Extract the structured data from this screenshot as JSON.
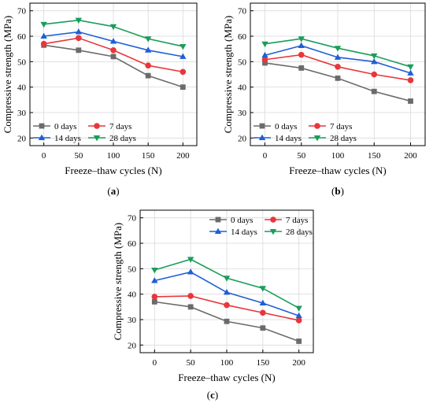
{
  "chart_data": [
    {
      "type": "line",
      "panel_label": "(a)",
      "xlabel": "Freeze–thaw cycles (N)",
      "ylabel": "Compressive strength (MPa)",
      "x": [
        0,
        50,
        100,
        150,
        200
      ],
      "x_ticks": [
        "0",
        "50",
        "100",
        "150",
        "200"
      ],
      "y_ticks": [
        "20",
        "30",
        "40",
        "50",
        "60",
        "70"
      ],
      "xlim": [
        -20,
        220
      ],
      "ylim": [
        17,
        73
      ],
      "grid": true,
      "legend_position": "bottom-left",
      "series": [
        {
          "name": "0 days",
          "values": [
            56.5,
            54.5,
            52,
            44.5,
            40
          ]
        },
        {
          "name": "7 days",
          "values": [
            57,
            59.3,
            54.5,
            48.5,
            46
          ]
        },
        {
          "name": "14 days",
          "values": [
            60,
            61.7,
            58,
            54.5,
            52
          ]
        },
        {
          "name": "28 days",
          "values": [
            64.7,
            66.3,
            63.8,
            59,
            56
          ]
        }
      ]
    },
    {
      "type": "line",
      "panel_label": "(b)",
      "xlabel": "Freeze–thaw cycles (N)",
      "ylabel": "Compressive strength (MPa)",
      "x": [
        0,
        50,
        100,
        150,
        200
      ],
      "x_ticks": [
        "0",
        "50",
        "100",
        "150",
        "200"
      ],
      "y_ticks": [
        "20",
        "30",
        "40",
        "50",
        "60",
        "70"
      ],
      "xlim": [
        -20,
        220
      ],
      "ylim": [
        17,
        73
      ],
      "grid": true,
      "legend_position": "bottom-left",
      "series": [
        {
          "name": "0 days",
          "values": [
            49.5,
            47.5,
            43.5,
            38.3,
            34.5
          ]
        },
        {
          "name": "7 days",
          "values": [
            50.8,
            52.7,
            48,
            45,
            42.7
          ]
        },
        {
          "name": "14 days",
          "values": [
            52.5,
            56.3,
            51.7,
            50,
            45.5
          ]
        },
        {
          "name": "28 days",
          "values": [
            57,
            59,
            55.3,
            52.3,
            48
          ]
        }
      ]
    },
    {
      "type": "line",
      "panel_label": "(c)",
      "xlabel": "Freeze–thaw cycles (N)",
      "ylabel": "Compressive strength (MPa)",
      "x": [
        0,
        50,
        100,
        150,
        200
      ],
      "x_ticks": [
        "0",
        "50",
        "100",
        "150",
        "200"
      ],
      "y_ticks": [
        "20",
        "30",
        "40",
        "50",
        "60",
        "70"
      ],
      "xlim": [
        -20,
        220
      ],
      "ylim": [
        17,
        73
      ],
      "grid": true,
      "legend_position": "top-right",
      "series": [
        {
          "name": "0 days",
          "values": [
            37,
            35,
            29.3,
            26.7,
            21.5
          ]
        },
        {
          "name": "7 days",
          "values": [
            39,
            39.3,
            35.7,
            32.7,
            29.7
          ]
        },
        {
          "name": "14 days",
          "values": [
            45.3,
            48.7,
            40.7,
            36.5,
            31.5
          ]
        },
        {
          "name": "28 days",
          "values": [
            49.5,
            53.7,
            46.3,
            42.3,
            34.5
          ]
        }
      ]
    }
  ],
  "style": {
    "series_colors": [
      "#6b6b6b",
      "#e8363c",
      "#1f5fd6",
      "#1a9d5a"
    ],
    "series_markers": [
      "square",
      "circle",
      "triangle-up",
      "triangle-down"
    ],
    "grid_color": "#d9d9d9",
    "axis_color": "#000000"
  }
}
